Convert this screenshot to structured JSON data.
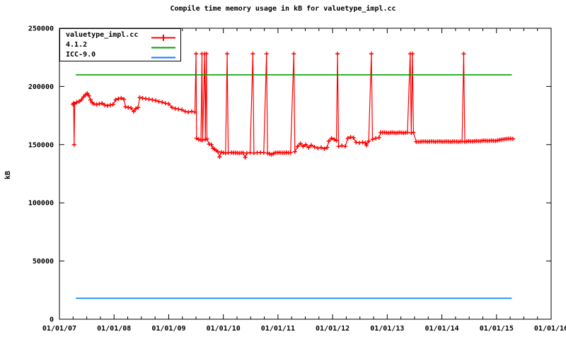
{
  "title": "Compile time memory usage in kB for valuetype_impl.cc",
  "ylabel": "kB",
  "legend": {
    "items": [
      {
        "label": "valuetype_impl.cc",
        "color": "#ff0000",
        "marker": "plus"
      },
      {
        "label": "4.1.2",
        "color": "#00a000",
        "marker": "none"
      },
      {
        "label": "ICC-9.0",
        "color": "#0080ff",
        "marker": "none"
      }
    ]
  },
  "chart_data": {
    "type": "line",
    "title": "Compile time memory usage in kB for valuetype_impl.cc",
    "xlabel": "",
    "ylabel": "kB",
    "grid": false,
    "legend_position": "top-left-inside-boxed",
    "x_axis": {
      "range_years": [
        2007,
        2016
      ],
      "minor_tick_interval_years": 0.25,
      "ticks": [
        {
          "year": 2007,
          "label": "01/01/07"
        },
        {
          "year": 2008,
          "label": "01/01/08"
        },
        {
          "year": 2009,
          "label": "01/01/09"
        },
        {
          "year": 2010,
          "label": "01/01/10"
        },
        {
          "year": 2011,
          "label": "01/01/11"
        },
        {
          "year": 2012,
          "label": "01/01/12"
        },
        {
          "year": 2013,
          "label": "01/01/13"
        },
        {
          "year": 2014,
          "label": "01/01/14"
        },
        {
          "year": 2015,
          "label": "01/01/15"
        },
        {
          "year": 2016,
          "label": "01/01/16"
        }
      ]
    },
    "y_axis": {
      "range": [
        0,
        250000
      ],
      "ticks": [
        0,
        50000,
        100000,
        150000,
        200000,
        250000
      ]
    },
    "series": [
      {
        "name": "valuetype_impl.cc",
        "color": "#ff0000",
        "style": "linespoints",
        "points": [
          [
            2007.25,
            184500
          ],
          [
            2007.26,
            185500
          ],
          [
            2007.27,
            150000
          ],
          [
            2007.28,
            185000
          ],
          [
            2007.32,
            186500
          ],
          [
            2007.36,
            187000
          ],
          [
            2007.4,
            188500
          ],
          [
            2007.44,
            191000
          ],
          [
            2007.48,
            193000
          ],
          [
            2007.51,
            194000
          ],
          [
            2007.54,
            192000
          ],
          [
            2007.57,
            188500
          ],
          [
            2007.6,
            186000
          ],
          [
            2007.63,
            185000
          ],
          [
            2007.68,
            184500
          ],
          [
            2007.73,
            185000
          ],
          [
            2007.78,
            185500
          ],
          [
            2007.83,
            184000
          ],
          [
            2007.88,
            183500
          ],
          [
            2007.93,
            184000
          ],
          [
            2007.98,
            184500
          ],
          [
            2008.03,
            188500
          ],
          [
            2008.08,
            189500
          ],
          [
            2008.13,
            190000
          ],
          [
            2008.18,
            189000
          ],
          [
            2008.21,
            182500
          ],
          [
            2008.26,
            182000
          ],
          [
            2008.31,
            181500
          ],
          [
            2008.36,
            178500
          ],
          [
            2008.4,
            181000
          ],
          [
            2008.44,
            182000
          ],
          [
            2008.47,
            190500
          ],
          [
            2008.52,
            190000
          ],
          [
            2008.58,
            189500
          ],
          [
            2008.64,
            189000
          ],
          [
            2008.7,
            188500
          ],
          [
            2008.76,
            188000
          ],
          [
            2008.82,
            187000
          ],
          [
            2008.88,
            186500
          ],
          [
            2008.94,
            185500
          ],
          [
            2009.0,
            185000
          ],
          [
            2009.06,
            182000
          ],
          [
            2009.12,
            181000
          ],
          [
            2009.18,
            180500
          ],
          [
            2009.24,
            180000
          ],
          [
            2009.3,
            178500
          ],
          [
            2009.36,
            178000
          ],
          [
            2009.42,
            178500
          ],
          [
            2009.48,
            178000
          ],
          [
            2009.5,
            228000
          ],
          [
            2009.51,
            155500
          ],
          [
            2009.55,
            154500
          ],
          [
            2009.59,
            154000
          ],
          [
            2009.61,
            228000
          ],
          [
            2009.62,
            154000
          ],
          [
            2009.66,
            228000
          ],
          [
            2009.67,
            154500
          ],
          [
            2009.69,
            228000
          ],
          [
            2009.7,
            155000
          ],
          [
            2009.74,
            150500
          ],
          [
            2009.78,
            150000
          ],
          [
            2009.81,
            147000
          ],
          [
            2009.84,
            146000
          ],
          [
            2009.87,
            145000
          ],
          [
            2009.9,
            144000
          ],
          [
            2009.93,
            139500
          ],
          [
            2009.96,
            143500
          ],
          [
            2010.0,
            143000
          ],
          [
            2010.04,
            142800
          ],
          [
            2010.07,
            228000
          ],
          [
            2010.09,
            143000
          ],
          [
            2010.15,
            143200
          ],
          [
            2010.22,
            143000
          ],
          [
            2010.29,
            142800
          ],
          [
            2010.36,
            143000
          ],
          [
            2010.4,
            139000
          ],
          [
            2010.43,
            142800
          ],
          [
            2010.49,
            143000
          ],
          [
            2010.54,
            228000
          ],
          [
            2010.56,
            142800
          ],
          [
            2010.62,
            143000
          ],
          [
            2010.68,
            143200
          ],
          [
            2010.74,
            143000
          ],
          [
            2010.79,
            228000
          ],
          [
            2010.81,
            142800
          ],
          [
            2010.88,
            141500
          ],
          [
            2010.95,
            143000
          ],
          [
            2011.02,
            143200
          ],
          [
            2011.09,
            143000
          ],
          [
            2011.16,
            143200
          ],
          [
            2011.23,
            143000
          ],
          [
            2011.29,
            228000
          ],
          [
            2011.31,
            144000
          ],
          [
            2011.36,
            148500
          ],
          [
            2011.41,
            151000
          ],
          [
            2011.46,
            148500
          ],
          [
            2011.51,
            150000
          ],
          [
            2011.56,
            147500
          ],
          [
            2011.61,
            149500
          ],
          [
            2011.67,
            148000
          ],
          [
            2011.73,
            147000
          ],
          [
            2011.79,
            147500
          ],
          [
            2011.85,
            146500
          ],
          [
            2011.9,
            147500
          ],
          [
            2011.93,
            153000
          ],
          [
            2011.98,
            155500
          ],
          [
            2012.03,
            154500
          ],
          [
            2012.07,
            153500
          ],
          [
            2012.09,
            228000
          ],
          [
            2012.11,
            148500
          ],
          [
            2012.17,
            149000
          ],
          [
            2012.23,
            148500
          ],
          [
            2012.28,
            155500
          ],
          [
            2012.33,
            156500
          ],
          [
            2012.38,
            156000
          ],
          [
            2012.43,
            152000
          ],
          [
            2012.49,
            151500
          ],
          [
            2012.55,
            152000
          ],
          [
            2012.6,
            151500
          ],
          [
            2012.62,
            149500
          ],
          [
            2012.66,
            153000
          ],
          [
            2012.71,
            228000
          ],
          [
            2012.73,
            154500
          ],
          [
            2012.79,
            155500
          ],
          [
            2012.85,
            156000
          ],
          [
            2012.88,
            160500
          ],
          [
            2012.95,
            160500
          ],
          [
            2013.02,
            160000
          ],
          [
            2013.09,
            160500
          ],
          [
            2013.16,
            160000
          ],
          [
            2013.23,
            160500
          ],
          [
            2013.3,
            160000
          ],
          [
            2013.37,
            160500
          ],
          [
            2013.42,
            228000
          ],
          [
            2013.44,
            160000
          ],
          [
            2013.46,
            228000
          ],
          [
            2013.48,
            160500
          ],
          [
            2013.53,
            152500
          ],
          [
            2013.6,
            152500
          ],
          [
            2013.67,
            152800
          ],
          [
            2013.74,
            152500
          ],
          [
            2013.81,
            152800
          ],
          [
            2013.88,
            152500
          ],
          [
            2013.95,
            152800
          ],
          [
            2014.02,
            152500
          ],
          [
            2014.09,
            152800
          ],
          [
            2014.16,
            152500
          ],
          [
            2014.23,
            152800
          ],
          [
            2014.3,
            152500
          ],
          [
            2014.37,
            152800
          ],
          [
            2014.4,
            228000
          ],
          [
            2014.42,
            152500
          ],
          [
            2014.49,
            153000
          ],
          [
            2014.56,
            152800
          ],
          [
            2014.63,
            153200
          ],
          [
            2014.7,
            153000
          ],
          [
            2014.77,
            153500
          ],
          [
            2014.84,
            153200
          ],
          [
            2014.91,
            153500
          ],
          [
            2014.98,
            153200
          ],
          [
            2015.05,
            154000
          ],
          [
            2015.12,
            154500
          ],
          [
            2015.19,
            155000
          ],
          [
            2015.26,
            155200
          ],
          [
            2015.3,
            155000
          ]
        ]
      },
      {
        "name": "4.1.2",
        "color": "#00a000",
        "style": "line",
        "points": [
          [
            2007.3,
            210000
          ],
          [
            2015.28,
            210000
          ]
        ]
      },
      {
        "name": "ICC-9.0",
        "color": "#0080ff",
        "style": "line",
        "points": [
          [
            2007.3,
            18000
          ],
          [
            2015.28,
            18000
          ]
        ]
      }
    ]
  }
}
